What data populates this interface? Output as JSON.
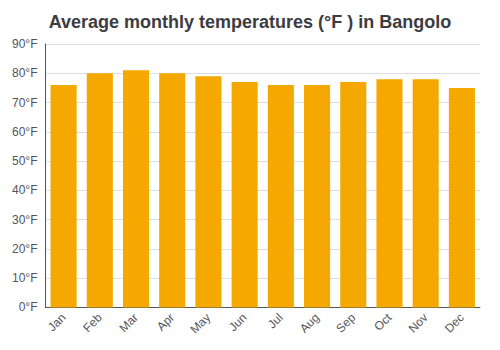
{
  "chart_data": {
    "type": "bar",
    "title": "Average monthly temperatures (°F ) in Bangolo",
    "categories": [
      "Jan",
      "Feb",
      "Mar",
      "Apr",
      "May",
      "Jun",
      "Jul",
      "Aug",
      "Sep",
      "Oct",
      "Nov",
      "Dec"
    ],
    "values": [
      76,
      80,
      81,
      80,
      79,
      77,
      76,
      76,
      77,
      78,
      78,
      75
    ],
    "color": "#F5A800",
    "ylim": [
      0,
      90
    ],
    "yticks": [
      {
        "value": 0,
        "label": "0°F"
      },
      {
        "value": 10,
        "label": "10°F"
      },
      {
        "value": 20,
        "label": "20°F"
      },
      {
        "value": 30,
        "label": "30°F"
      },
      {
        "value": 40,
        "label": "40°F"
      },
      {
        "value": 50,
        "label": "50°F"
      },
      {
        "value": 60,
        "label": "60°F"
      },
      {
        "value": 70,
        "label": "70°F"
      },
      {
        "value": 80,
        "label": "80°F"
      },
      {
        "value": 90,
        "label": "90°F"
      }
    ],
    "grid": true
  }
}
